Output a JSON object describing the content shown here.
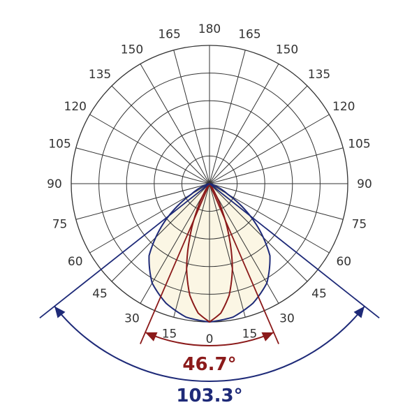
{
  "chart_data": {
    "type": "polar-luminous-intensity",
    "angle_tick_labels": {
      "left": [
        "180",
        "165",
        "150",
        "135",
        "120",
        "105",
        "90",
        "75",
        "60",
        "45",
        "30",
        "15",
        "0"
      ],
      "right": [
        "165",
        "150",
        "135",
        "120",
        "105",
        "90",
        "75",
        "60",
        "45",
        "30",
        "15"
      ]
    },
    "radial_rings": 5,
    "spoke_step_deg": 15,
    "grid": true,
    "series": [
      {
        "kind": "narrow-beam",
        "color": "#8b1a1a",
        "beam_angle_deg": 46.7,
        "beam_label": "46.7°",
        "relative_intensity": [
          [
            0,
            1.0
          ],
          [
            5,
            0.94
          ],
          [
            10,
            0.82
          ],
          [
            15,
            0.64
          ],
          [
            20,
            0.42
          ],
          [
            25,
            0.22
          ],
          [
            30,
            0.08
          ],
          [
            35,
            0.01
          ],
          [
            40,
            0.0
          ]
        ]
      },
      {
        "kind": "wide-beam",
        "color": "#1e2a78",
        "fill": "#fbf6e4",
        "beam_angle_deg": 103.3,
        "beam_label": "103.3°",
        "relative_intensity": [
          [
            0,
            1.0
          ],
          [
            10,
            0.98
          ],
          [
            20,
            0.92
          ],
          [
            30,
            0.83
          ],
          [
            40,
            0.68
          ],
          [
            50,
            0.42
          ],
          [
            60,
            0.15
          ],
          [
            70,
            0.03
          ],
          [
            80,
            0.0
          ]
        ]
      }
    ]
  }
}
